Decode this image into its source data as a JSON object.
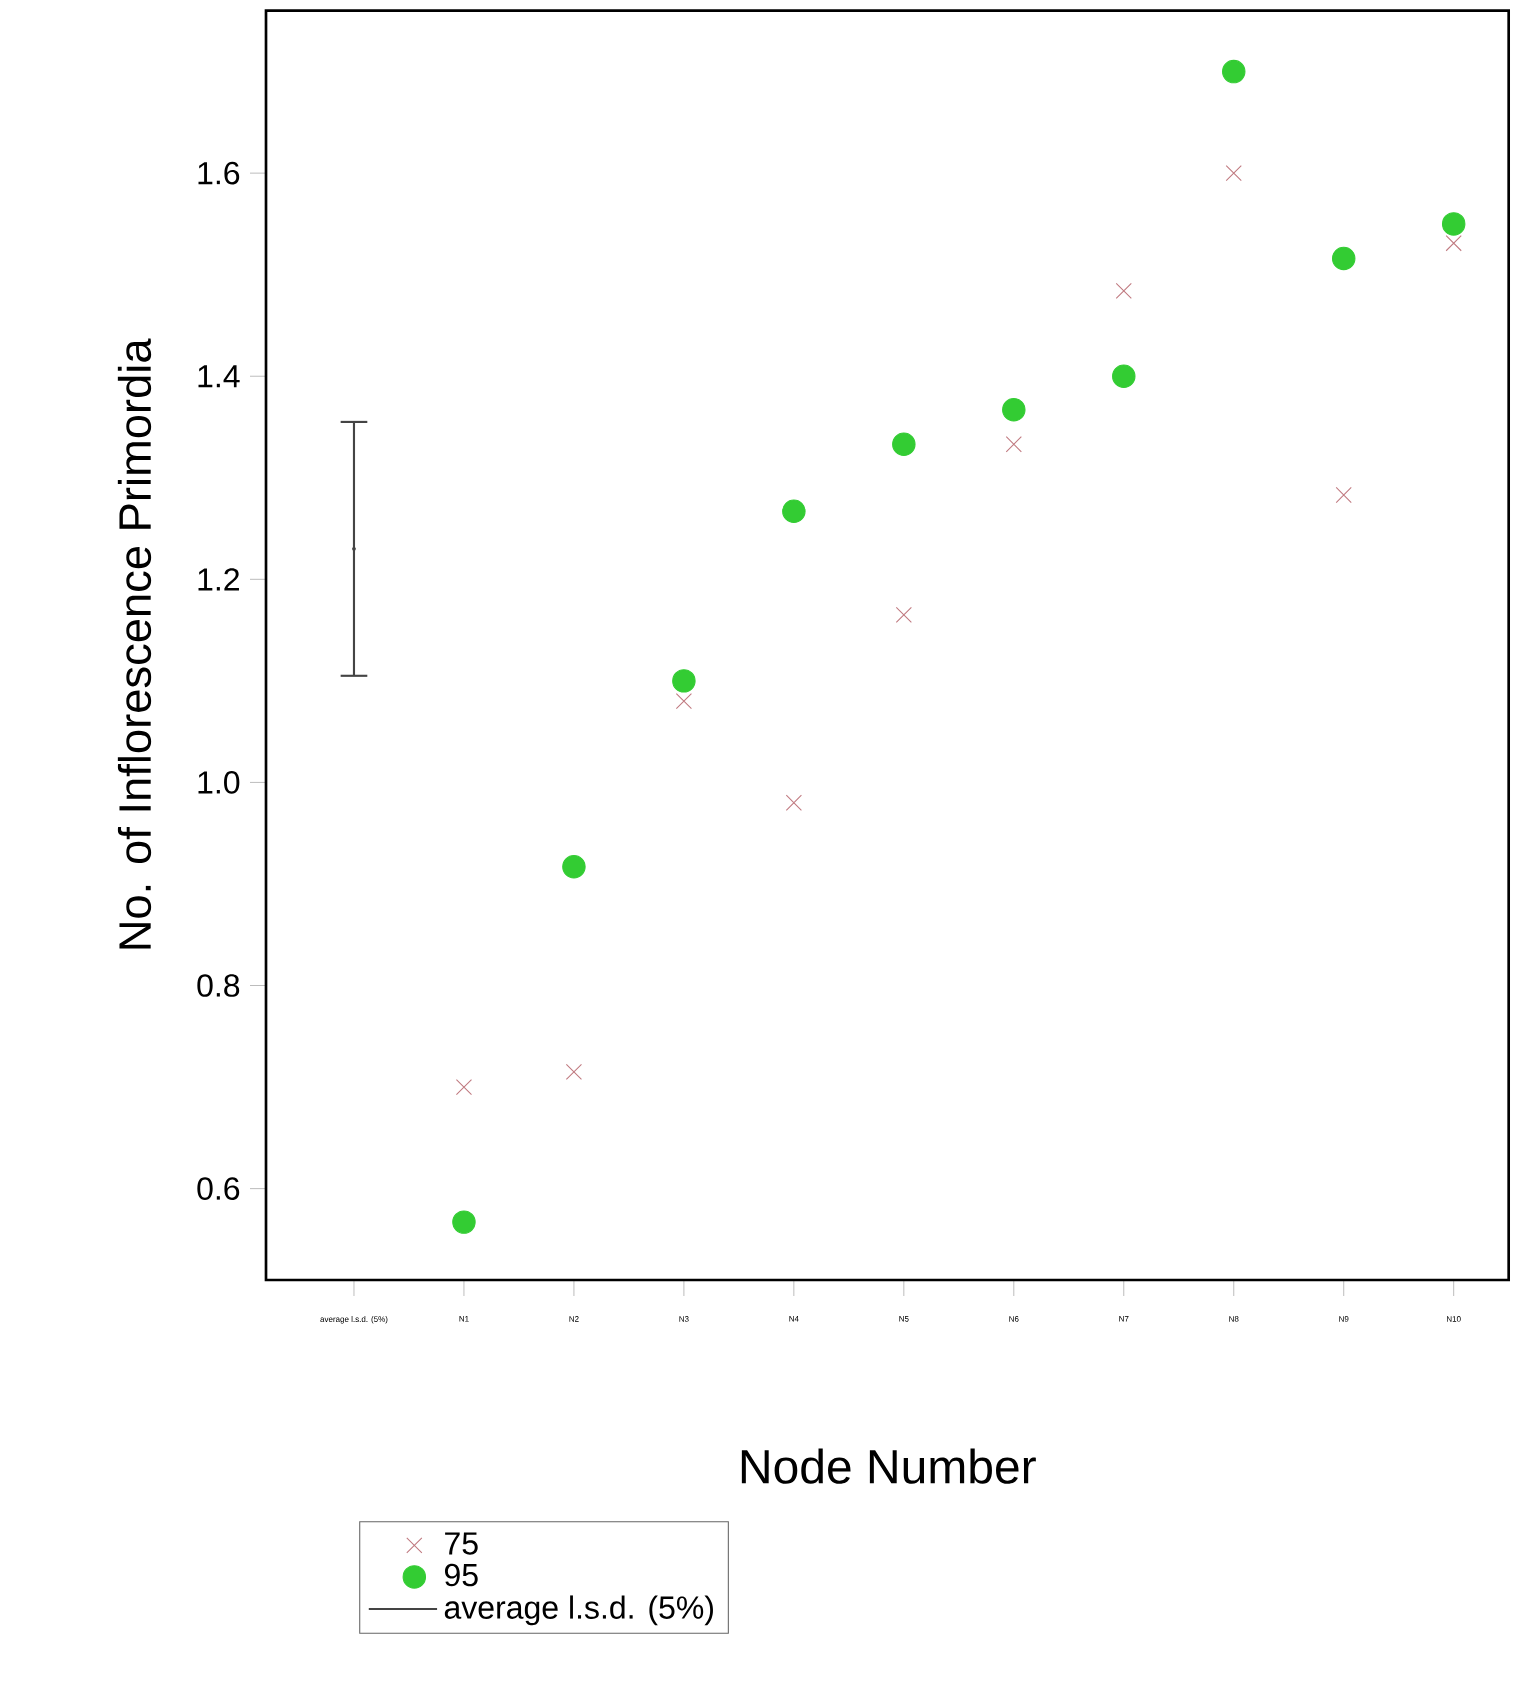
{
  "chart_data": {
    "type": "scatter",
    "xlabel": "Node Number",
    "ylabel": "No. of Inflorescence Primordia",
    "categories": [
      "average l.s.d. (5%)",
      "N1",
      "N2",
      "N3",
      "N4",
      "N5",
      "N6",
      "N7",
      "N8",
      "N9",
      "N10"
    ],
    "ylim": [
      0.51,
      1.76
    ],
    "yticks": [
      {
        "value": 0.6,
        "label": "0.6"
      },
      {
        "value": 0.8,
        "label": "0.8"
      },
      {
        "value": 1.0,
        "label": "1.0"
      },
      {
        "value": 1.2,
        "label": "1.2"
      },
      {
        "value": 1.4,
        "label": "1.4"
      },
      {
        "value": 1.6,
        "label": "1.6"
      }
    ],
    "grid": false,
    "legend": "bottom",
    "series": [
      {
        "name": "75",
        "color": "#c07a80",
        "marker": "cross",
        "values": [
          null,
          0.7,
          0.715,
          1.08,
          0.98,
          1.165,
          1.333,
          1.484,
          1.6,
          1.283,
          1.531
        ]
      },
      {
        "name": "95",
        "color": "#33cc33",
        "marker": "circle",
        "values": [
          null,
          0.567,
          0.917,
          1.1,
          1.267,
          1.333,
          1.367,
          1.4,
          1.7,
          1.516,
          1.55
        ]
      },
      {
        "name": "average l.s.d. (5%)",
        "color": "#444444",
        "marker": "none",
        "values": [
          1.23,
          null,
          null,
          null,
          null,
          null,
          null,
          null,
          null,
          null,
          null
        ],
        "errors": [
          [
            1.105,
            1.355
          ],
          null,
          null,
          null,
          null,
          null,
          null,
          null,
          null,
          null,
          null
        ]
      }
    ]
  }
}
